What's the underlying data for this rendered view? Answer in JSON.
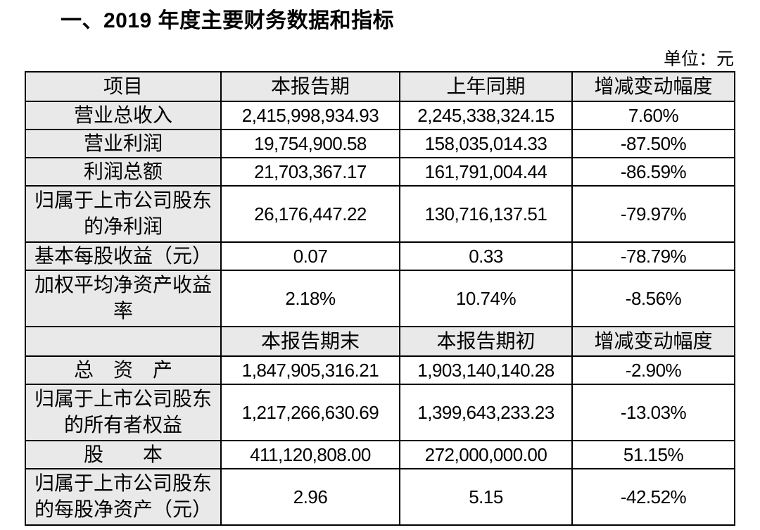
{
  "page": {
    "title": "一、2019 年度主要财务数据和指标",
    "unit_label": "单位：元"
  },
  "table": {
    "header1": [
      "项目",
      "本报告期",
      "上年同期",
      "增减变动幅度"
    ],
    "rows1": [
      {
        "label": "营业总收入",
        "current": "2,415,998,934.93",
        "prior": "2,245,338,324.15",
        "change": "7.60%"
      },
      {
        "label": "营业利润",
        "current": "19,754,900.58",
        "prior": "158,035,014.33",
        "change": "-87.50%"
      },
      {
        "label": "利润总额",
        "current": "21,703,367.17",
        "prior": "161,791,004.44",
        "change": "-86.59%"
      },
      {
        "label": "归属于上市公司股东的净利润",
        "current": "26,176,447.22",
        "prior": "130,716,137.51",
        "change": "-79.97%"
      },
      {
        "label": "基本每股收益（元）",
        "current": "0.07",
        "prior": "0.33",
        "change": "-78.79%"
      },
      {
        "label": "加权平均净资产收益率",
        "current": "2.18%",
        "prior": "10.74%",
        "change": "-8.56%"
      }
    ],
    "header2": [
      "",
      "本报告期末",
      "本报告期初",
      "增减变动幅度"
    ],
    "rows2": [
      {
        "label": "总　资　产",
        "current": "1,847,905,316.21",
        "prior": "1,903,140,140.28",
        "change": "-2.90%"
      },
      {
        "label": "归属于上市公司股东的所有者权益",
        "current": "1,217,266,630.69",
        "prior": "1,399,643,233.23",
        "change": "-13.03%"
      },
      {
        "label": "股　　本",
        "current": "411,120,808.00",
        "prior": "272,000,000.00",
        "change": "51.15%"
      },
      {
        "label": "归属于上市公司股东的每股净资产（元）",
        "current": "2.96",
        "prior": "5.15",
        "change": "-42.52%"
      }
    ]
  }
}
